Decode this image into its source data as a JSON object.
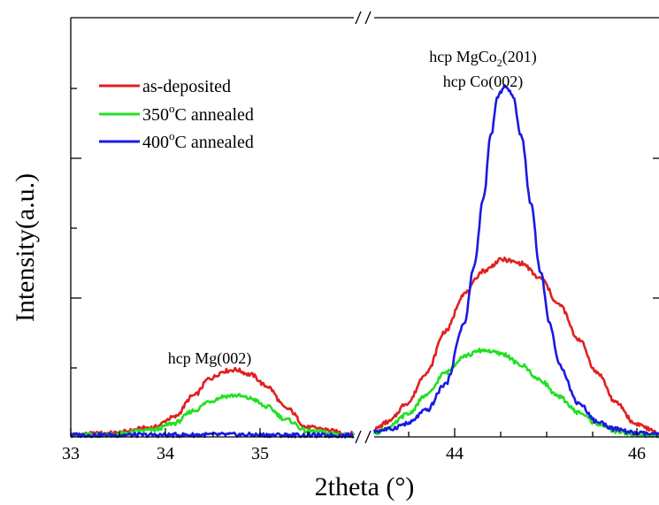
{
  "chart_data": {
    "type": "line",
    "xlabel": "2theta (°)",
    "ylabel": "Intensity(a.u.)",
    "left_panel": {
      "xlim": [
        33,
        35.75
      ],
      "xticks": [
        "33",
        "34",
        "35"
      ]
    },
    "right_panel": {
      "xlim": [
        43.25,
        46.25
      ],
      "xticks": [
        "44",
        "46"
      ]
    },
    "ylim": [
      0,
      100
    ],
    "grid": false,
    "legend_position": "top-left",
    "annotations": {
      "mg": "hcp Mg(002)",
      "mgco2_main": "hcp MgCo",
      "mgco2_sub": "2",
      "mgco2_suffix": "(201)",
      "co": "hcp Co(002)"
    },
    "series": [
      {
        "name": "as-deposited",
        "legend_prefix": "as-deposited",
        "legend_sup": "",
        "legend_suffix": "",
        "color": "#e02020",
        "left": {
          "x": [
            33.0,
            33.4,
            33.8,
            34.0,
            34.2,
            34.35,
            34.5,
            34.6,
            34.75,
            34.9,
            35.1,
            35.3,
            35.75
          ],
          "y": [
            0.6,
            1.0,
            2.5,
            5.2,
            11,
            15.5,
            17.5,
            17.8,
            16.5,
            13.5,
            7.5,
            2.5,
            0.8
          ]
        },
        "right": {
          "x": [
            43.25,
            43.4,
            43.6,
            43.8,
            44.0,
            44.2,
            44.4,
            44.6,
            44.8,
            45.0,
            45.2,
            45.4,
            45.6,
            45.8,
            46.0,
            46.25
          ],
          "y": [
            2.0,
            4.0,
            9.0,
            17.0,
            28.0,
            38.0,
            44.0,
            47.0,
            46.0,
            42.0,
            35.0,
            26.0,
            17.0,
            9.0,
            3.5,
            1.0
          ]
        }
      },
      {
        "name": "350°C annealed",
        "legend_prefix": "350",
        "legend_sup": "o",
        "legend_suffix": "C annealed",
        "color": "#22e022",
        "left": {
          "x": [
            33.0,
            33.4,
            33.8,
            34.0,
            34.2,
            34.35,
            34.5,
            34.6,
            34.75,
            34.9,
            35.1,
            35.3,
            35.75
          ],
          "y": [
            0.4,
            0.7,
            1.8,
            3.6,
            7.0,
            9.5,
            10.8,
            11.0,
            10.2,
            8.0,
            4.5,
            1.5,
            0.5
          ]
        },
        "right": {
          "x": [
            43.25,
            43.4,
            43.6,
            43.8,
            44.0,
            44.2,
            44.4,
            44.6,
            44.8,
            45.0,
            45.2,
            45.4,
            45.6,
            45.8,
            46.0,
            46.25
          ],
          "y": [
            1.0,
            2.5,
            6.0,
            11.0,
            17.0,
            21.5,
            23.0,
            22.0,
            19.0,
            15.0,
            10.5,
            6.5,
            3.5,
            1.5,
            0.6,
            0.2
          ]
        }
      },
      {
        "name": "400°C annealed",
        "legend_prefix": "400",
        "legend_sup": "o",
        "legend_suffix": "C annealed",
        "color": "#1a1ae0",
        "left": {
          "x": [
            33.0,
            33.5,
            34.0,
            34.5,
            35.0,
            35.5,
            35.75
          ],
          "y": [
            0.5,
            0.5,
            0.5,
            0.6,
            0.5,
            0.4,
            0.4
          ]
        },
        "right": {
          "x": [
            43.25,
            43.4,
            43.6,
            43.8,
            44.0,
            44.2,
            44.3,
            44.4,
            44.48,
            44.55,
            44.62,
            44.7,
            44.8,
            44.9,
            45.0,
            45.1,
            45.2,
            45.4,
            45.6,
            45.8,
            46.0,
            46.25
          ],
          "y": [
            1.5,
            2.0,
            3.5,
            7.0,
            14.0,
            30.0,
            45.0,
            63.0,
            80.0,
            90.0,
            93.0,
            91.0,
            80.0,
            62.0,
            44.0,
            30.0,
            19.0,
            9.0,
            4.0,
            2.0,
            1.0,
            0.6
          ]
        }
      }
    ]
  }
}
